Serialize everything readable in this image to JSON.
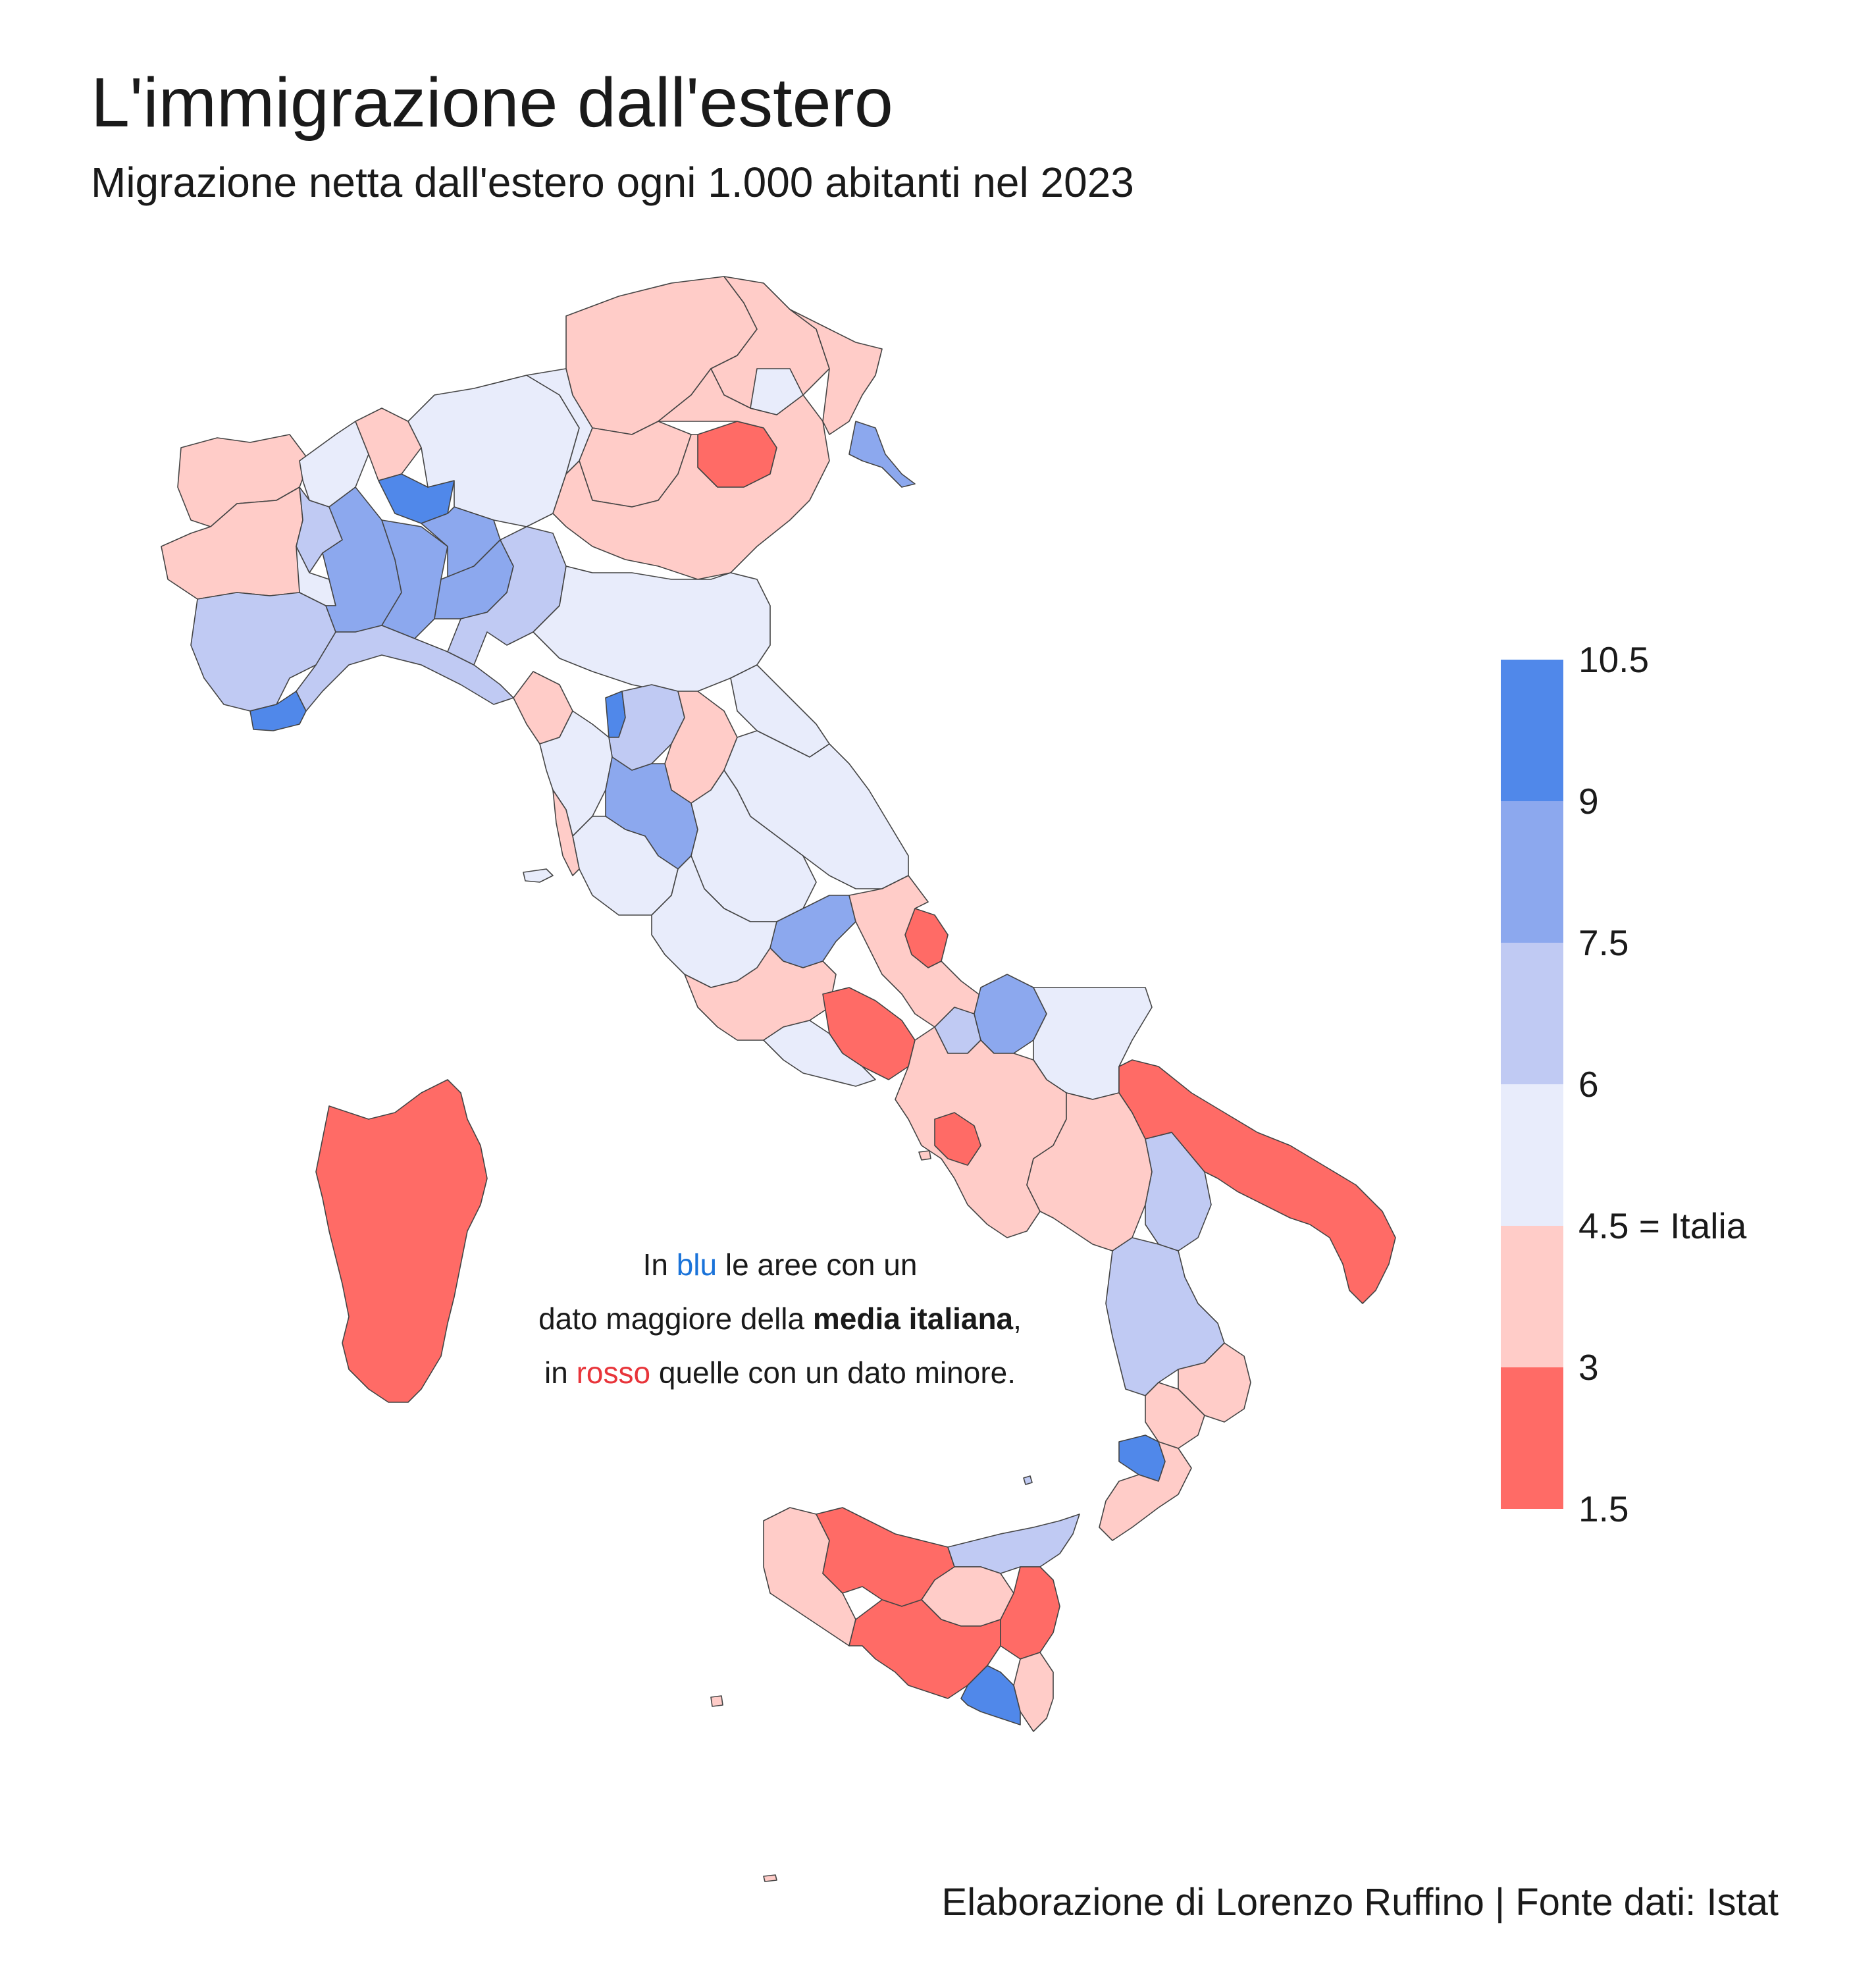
{
  "title": "L'immigrazione dall'estero",
  "subtitle": "Migrazione netta dall'estero ogni 1.000 abitanti nel 2023",
  "annotation": {
    "part1": "In ",
    "blu": "blu",
    "part2": " le aree con un",
    "part3": "dato maggiore della ",
    "bold": "media italiana",
    "part4": ",",
    "part5": "in ",
    "rosso": "rosso",
    "part6": " quelle con un dato minore."
  },
  "source": "Elaborazione di Lorenzo Ruffino | Fonte dati: Istat",
  "colors": {
    "c1": "#ff6b66",
    "c2": "#ffccc8",
    "c3": "#e8ecfb",
    "c4": "#c0caf3",
    "c5": "#8ca8ee",
    "c6": "#5088ea",
    "border": "#555555"
  },
  "legend": {
    "ticks": [
      "10.5",
      "9",
      "7.5",
      "6",
      "4.5 = Italia",
      "3",
      "1.5"
    ],
    "bands": [
      "c6",
      "c5",
      "c4",
      "c3",
      "c2",
      "c1"
    ]
  }
}
